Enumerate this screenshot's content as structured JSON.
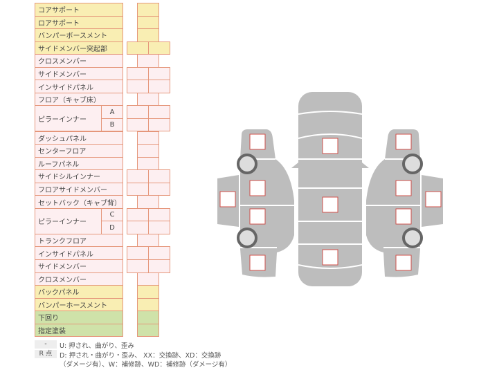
{
  "rows": [
    {
      "label": "コアサポート",
      "color": "y",
      "boxes": 1
    },
    {
      "label": "ロアサポート",
      "color": "y",
      "boxes": 1
    },
    {
      "label": "バンパーボースメント",
      "color": "y",
      "boxes": 1
    },
    {
      "label": "サイドメンバー突起部",
      "color": "y",
      "boxes": 2
    },
    {
      "label": "クロスメンバー",
      "color": "p",
      "boxes": 1
    },
    {
      "label": "サイドメンバー",
      "color": "p",
      "boxes": 2
    },
    {
      "label": "インサイドパネル",
      "color": "p",
      "boxes": 2
    },
    {
      "label": "フロア（キャブ床）",
      "color": "p",
      "boxes": 1
    },
    {
      "label": "ピラーインナー",
      "color": "p",
      "boxes": 2,
      "sub": [
        "A",
        "B"
      ]
    },
    {
      "label": "ダッシュパネル",
      "color": "p",
      "boxes": 1
    },
    {
      "label": "センターフロア",
      "color": "p",
      "boxes": 1
    },
    {
      "label": "ルーフパネル",
      "color": "p",
      "boxes": 1
    },
    {
      "label": "サイドシルインナー",
      "color": "p",
      "boxes": 2
    },
    {
      "label": "フロアサイドメンバー",
      "color": "p",
      "boxes": 2
    },
    {
      "label": "セットバック（キャブ背）",
      "color": "p",
      "boxes": 1
    },
    {
      "label": "ピラーインナー",
      "color": "p",
      "boxes": 2,
      "sub": [
        "C",
        "D"
      ]
    },
    {
      "label": "トランクフロア",
      "color": "p",
      "boxes": 1
    },
    {
      "label": "インサイドパネル",
      "color": "p",
      "boxes": 2
    },
    {
      "label": "サイドメンバー",
      "color": "p",
      "boxes": 2
    },
    {
      "label": "クロスメンバー",
      "color": "p",
      "boxes": 1
    },
    {
      "label": "バックパネル",
      "color": "y",
      "boxes": 1
    },
    {
      "label": "バンパーホースメント",
      "color": "y",
      "boxes": 1
    },
    {
      "label": "下回り",
      "color": "g",
      "boxes": 1
    },
    {
      "label": "指定塗装",
      "color": "g",
      "boxes": 1
    }
  ],
  "legend": {
    "key1": "-",
    "text1": "U: 押され、曲がり、歪み",
    "key2": "R 点",
    "text2": "D: 押され・曲がり・歪み、 XX：交換跡、XD：交換跡",
    "text3": "（ダメージ有）、W：補修跡、WD：補修跡（ダメージ有）"
  },
  "colors": {
    "yellow": "#f9eeb3",
    "pink": "#fdeff1",
    "green": "#cfe2a9",
    "border": "#e5967a",
    "body": "#bdbdbd",
    "marker": "#d0504a"
  }
}
